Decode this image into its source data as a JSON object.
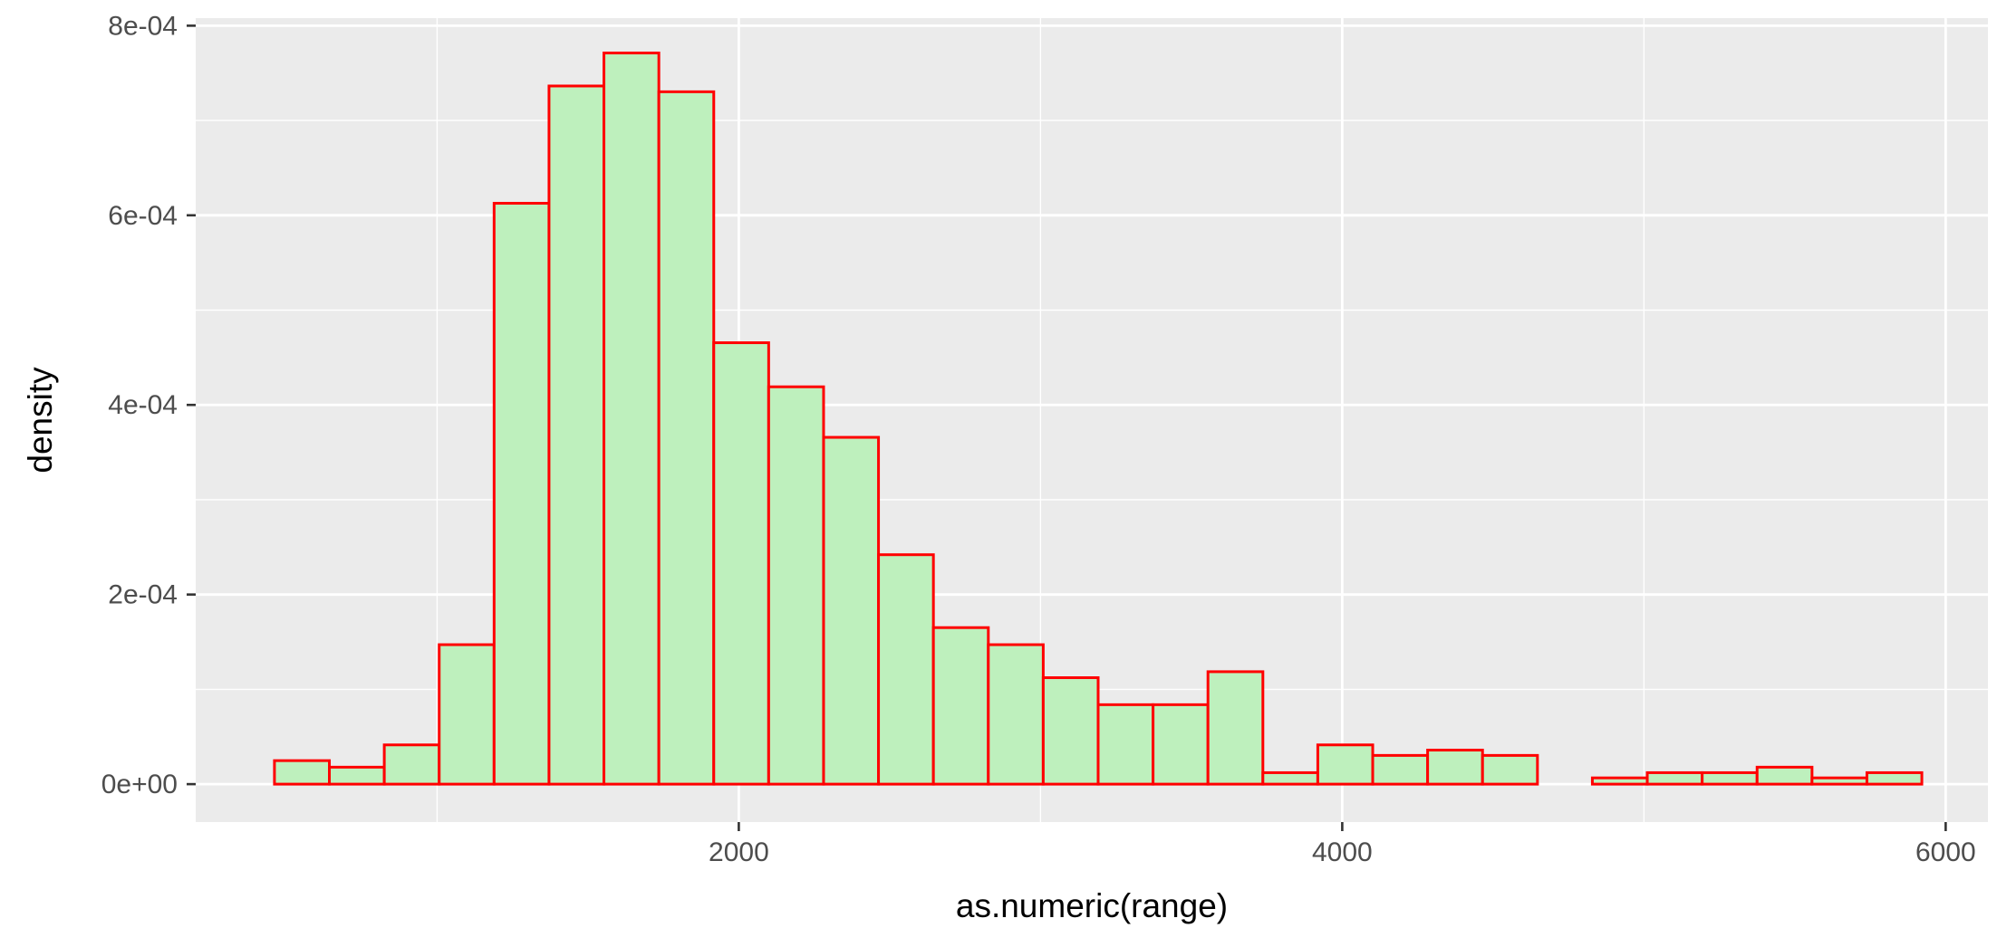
{
  "chart_data": {
    "type": "bar",
    "subtype": "histogram",
    "xlabel": "as.numeric(range)",
    "ylabel": "density",
    "xlim": [
      200,
      6140
    ],
    "ylim": [
      -4e-05,
      0.000808
    ],
    "x_ticks": [
      2000,
      4000,
      6000
    ],
    "x_tick_labels": [
      "2000",
      "4000",
      "6000"
    ],
    "y_ticks": [
      0,
      0.0002,
      0.0004,
      0.0006,
      0.0008
    ],
    "y_tick_labels": [
      "0e+00",
      "2e-04",
      "4e-04",
      "6e-04",
      "8e-04"
    ],
    "grid": true,
    "legend": "none",
    "bin_width": 182,
    "bins": [
      {
        "x0": 461,
        "x1": 643,
        "value": 2.48e-05
      },
      {
        "x0": 643,
        "x1": 825,
        "value": 1.79e-05
      },
      {
        "x0": 825,
        "x1": 1007,
        "value": 4.14e-05
      },
      {
        "x0": 1007,
        "x1": 1189,
        "value": 0.0001471
      },
      {
        "x0": 1189,
        "x1": 1371,
        "value": 0.0006127
      },
      {
        "x0": 1371,
        "x1": 1553,
        "value": 0.0007364
      },
      {
        "x0": 1553,
        "x1": 1735,
        "value": 0.0007712
      },
      {
        "x0": 1735,
        "x1": 1917,
        "value": 0.0007303
      },
      {
        "x0": 1917,
        "x1": 2099,
        "value": 0.0004656
      },
      {
        "x0": 2099,
        "x1": 2281,
        "value": 0.0004191
      },
      {
        "x0": 2281,
        "x1": 2463,
        "value": 0.0003658
      },
      {
        "x0": 2463,
        "x1": 2645,
        "value": 0.000242
      },
      {
        "x0": 2645,
        "x1": 2827,
        "value": 0.0001651
      },
      {
        "x0": 2827,
        "x1": 3009,
        "value": 0.0001471
      },
      {
        "x0": 3009,
        "x1": 3191,
        "value": 0.0001123
      },
      {
        "x0": 3191,
        "x1": 3373,
        "value": 8.38e-05
      },
      {
        "x0": 3373,
        "x1": 3555,
        "value": 8.38e-05
      },
      {
        "x0": 3555,
        "x1": 3737,
        "value": 0.0001186
      },
      {
        "x0": 3737,
        "x1": 3919,
        "value": 1.21e-05
      },
      {
        "x0": 3919,
        "x1": 4101,
        "value": 4.14e-05
      },
      {
        "x0": 4101,
        "x1": 4283,
        "value": 3.03e-05
      },
      {
        "x0": 4283,
        "x1": 4465,
        "value": 3.59e-05
      },
      {
        "x0": 4465,
        "x1": 4647,
        "value": 3.03e-05
      },
      {
        "x0": 4647,
        "x1": 4829,
        "value": 0
      },
      {
        "x0": 4829,
        "x1": 5011,
        "value": 6.6e-06
      },
      {
        "x0": 5011,
        "x1": 5193,
        "value": 1.21e-05
      },
      {
        "x0": 5193,
        "x1": 5375,
        "value": 1.21e-05
      },
      {
        "x0": 5375,
        "x1": 5557,
        "value": 1.79e-05
      },
      {
        "x0": 5557,
        "x1": 5739,
        "value": 6.6e-06
      },
      {
        "x0": 5739,
        "x1": 5921,
        "value": 1.21e-05
      }
    ],
    "colors": {
      "fill": "#bef0bd",
      "outline": "#ff0000",
      "panel": "#ebebeb",
      "grid": "#ffffff",
      "tick_text": "#4d4d4d",
      "tick_mark": "#333333",
      "axis_title": "#000000"
    }
  }
}
